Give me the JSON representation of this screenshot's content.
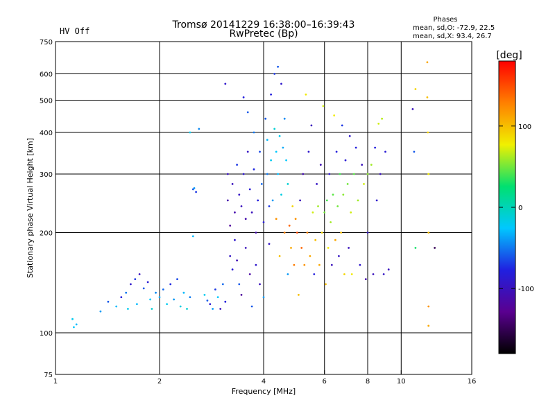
{
  "status": {
    "text": "HV Off",
    "color": "#cc0000"
  },
  "chart_data": {
    "type": "scatter",
    "title": "Tromsø 20141229 16:38:00–16:39:43",
    "subtitle": "RwPretec (Bp)",
    "xlabel": "Frequency [MHz]",
    "ylabel": "Stationary phase Virtual Height [km]",
    "x_scale": "log",
    "y_scale": "log",
    "xlim": [
      1,
      16
    ],
    "ylim": [
      75,
      750
    ],
    "x_ticks": [
      1,
      2,
      4,
      6,
      8,
      10,
      16
    ],
    "y_ticks": [
      75,
      100,
      200,
      300,
      400,
      500,
      600,
      750
    ],
    "grid": true,
    "legend": {
      "title": "Phases",
      "lines": [
        "mean, sd,O: -72.9, 22.5",
        "mean, sd,X:  93.4, 26.7"
      ],
      "placement": "top-right"
    },
    "colorbar": {
      "label": "[deg]",
      "min": -180,
      "max": 180,
      "ticks": [
        100,
        0,
        -100
      ],
      "colors": [
        "#000000",
        "#5a0090",
        "#2020e0",
        "#00c8ff",
        "#00e070",
        "#f0f000",
        "#ff8000",
        "#ff0000"
      ]
    },
    "points": [
      [
        1.12,
        110,
        -20
      ],
      [
        1.15,
        106,
        -30
      ],
      [
        1.13,
        104,
        -25
      ],
      [
        1.35,
        116,
        -40
      ],
      [
        1.42,
        124,
        -60
      ],
      [
        1.5,
        120,
        -30
      ],
      [
        1.55,
        128,
        -80
      ],
      [
        1.6,
        132,
        -50
      ],
      [
        1.62,
        118,
        -20
      ],
      [
        1.65,
        140,
        -90
      ],
      [
        1.7,
        145,
        -70
      ],
      [
        1.72,
        122,
        -30
      ],
      [
        1.75,
        150,
        -100
      ],
      [
        1.8,
        136,
        -60
      ],
      [
        1.85,
        142,
        -85
      ],
      [
        1.88,
        126,
        -25
      ],
      [
        1.9,
        118,
        -10
      ],
      [
        1.95,
        132,
        -45
      ],
      [
        2.0,
        128,
        -35
      ],
      [
        2.05,
        135,
        -55
      ],
      [
        2.1,
        122,
        -20
      ],
      [
        2.15,
        140,
        -75
      ],
      [
        2.2,
        126,
        -40
      ],
      [
        2.25,
        145,
        -65
      ],
      [
        2.3,
        120,
        -15
      ],
      [
        2.35,
        132,
        -30
      ],
      [
        2.4,
        118,
        -10
      ],
      [
        2.45,
        128,
        -50
      ],
      [
        2.5,
        270,
        -60
      ],
      [
        2.52,
        272,
        -40
      ],
      [
        2.55,
        265,
        -70
      ],
      [
        2.45,
        400,
        -20
      ],
      [
        2.5,
        195,
        -30
      ],
      [
        2.6,
        410,
        -45
      ],
      [
        2.7,
        130,
        -20
      ],
      [
        2.75,
        125,
        -60
      ],
      [
        2.8,
        122,
        -85
      ],
      [
        2.85,
        118,
        -40
      ],
      [
        2.9,
        135,
        -70
      ],
      [
        2.95,
        128,
        -25
      ],
      [
        3.0,
        118,
        -100
      ],
      [
        3.05,
        140,
        -55
      ],
      [
        3.1,
        124,
        -80
      ],
      [
        3.1,
        560,
        -90
      ],
      [
        3.15,
        300,
        -100
      ],
      [
        3.15,
        250,
        -110
      ],
      [
        3.2,
        210,
        -120
      ],
      [
        3.2,
        170,
        -95
      ],
      [
        3.25,
        155,
        -85
      ],
      [
        3.25,
        280,
        -100
      ],
      [
        3.3,
        230,
        -110
      ],
      [
        3.3,
        190,
        -90
      ],
      [
        3.35,
        320,
        -70
      ],
      [
        3.35,
        165,
        -105
      ],
      [
        3.4,
        260,
        -95
      ],
      [
        3.4,
        140,
        -60
      ],
      [
        3.45,
        240,
        -100
      ],
      [
        3.45,
        130,
        -120
      ],
      [
        3.5,
        510,
        -80
      ],
      [
        3.5,
        300,
        -90
      ],
      [
        3.55,
        220,
        -110
      ],
      [
        3.55,
        180,
        -100
      ],
      [
        3.6,
        460,
        -60
      ],
      [
        3.6,
        350,
        -95
      ],
      [
        3.65,
        270,
        -85
      ],
      [
        3.65,
        150,
        -115
      ],
      [
        3.7,
        230,
        -100
      ],
      [
        3.7,
        120,
        -60
      ],
      [
        3.75,
        400,
        -50
      ],
      [
        3.75,
        310,
        -75
      ],
      [
        3.8,
        200,
        -110
      ],
      [
        3.8,
        160,
        -90
      ],
      [
        3.85,
        250,
        -80
      ],
      [
        3.9,
        350,
        -65
      ],
      [
        3.9,
        140,
        -100
      ],
      [
        3.95,
        280,
        -55
      ],
      [
        4.0,
        215,
        -85
      ],
      [
        4.0,
        128,
        -40
      ],
      [
        4.05,
        440,
        -60
      ],
      [
        4.1,
        380,
        -30
      ],
      [
        4.1,
        300,
        -50
      ],
      [
        4.15,
        240,
        -70
      ],
      [
        4.15,
        185,
        -95
      ],
      [
        4.2,
        520,
        -80
      ],
      [
        4.2,
        330,
        -20
      ],
      [
        4.25,
        250,
        -40
      ],
      [
        4.3,
        600,
        -70
      ],
      [
        4.3,
        410,
        -10
      ],
      [
        4.35,
        350,
        -25
      ],
      [
        4.35,
        220,
        120
      ],
      [
        4.4,
        630,
        -60
      ],
      [
        4.4,
        300,
        -30
      ],
      [
        4.45,
        390,
        -20
      ],
      [
        4.45,
        170,
        100
      ],
      [
        4.5,
        560,
        -90
      ],
      [
        4.5,
        260,
        -15
      ],
      [
        4.55,
        360,
        -35
      ],
      [
        4.6,
        440,
        -45
      ],
      [
        4.6,
        200,
        130
      ],
      [
        4.65,
        330,
        -25
      ],
      [
        4.7,
        280,
        -10
      ],
      [
        4.7,
        150,
        -40
      ],
      [
        4.75,
        210,
        140
      ],
      [
        4.8,
        180,
        110
      ],
      [
        4.85,
        240,
        90
      ],
      [
        4.9,
        160,
        130
      ],
      [
        4.95,
        220,
        120
      ],
      [
        5.0,
        200,
        150
      ],
      [
        5.05,
        130,
        100
      ],
      [
        5.1,
        250,
        -100
      ],
      [
        5.15,
        180,
        140
      ],
      [
        5.2,
        300,
        -110
      ],
      [
        5.25,
        160,
        120
      ],
      [
        5.3,
        520,
        80
      ],
      [
        5.35,
        200,
        130
      ],
      [
        5.4,
        350,
        -90
      ],
      [
        5.45,
        170,
        110
      ],
      [
        5.5,
        420,
        -100
      ],
      [
        5.55,
        230,
        70
      ],
      [
        5.6,
        150,
        -80
      ],
      [
        5.65,
        190,
        100
      ],
      [
        5.7,
        280,
        -95
      ],
      [
        5.75,
        240,
        60
      ],
      [
        5.8,
        160,
        110
      ],
      [
        5.85,
        320,
        -105
      ],
      [
        5.9,
        200,
        90
      ],
      [
        5.95,
        480,
        70
      ],
      [
        6.0,
        230,
        50
      ],
      [
        6.05,
        140,
        100
      ],
      [
        6.1,
        250,
        40
      ],
      [
        6.15,
        180,
        80
      ],
      [
        6.2,
        300,
        -90
      ],
      [
        6.25,
        215,
        60
      ],
      [
        6.3,
        160,
        -100
      ],
      [
        6.35,
        260,
        45
      ],
      [
        6.4,
        450,
        80
      ],
      [
        6.45,
        190,
        110
      ],
      [
        6.5,
        350,
        -80
      ],
      [
        6.55,
        240,
        50
      ],
      [
        6.6,
        170,
        -95
      ],
      [
        6.65,
        300,
        40
      ],
      [
        6.7,
        200,
        100
      ],
      [
        6.75,
        420,
        -70
      ],
      [
        6.8,
        260,
        55
      ],
      [
        6.85,
        150,
        90
      ],
      [
        6.9,
        330,
        -85
      ],
      [
        7.0,
        280,
        50
      ],
      [
        7.05,
        180,
        -100
      ],
      [
        7.1,
        390,
        -90
      ],
      [
        7.15,
        230,
        70
      ],
      [
        7.2,
        150,
        80
      ],
      [
        7.3,
        300,
        45
      ],
      [
        7.4,
        360,
        -80
      ],
      [
        7.5,
        250,
        60
      ],
      [
        7.6,
        160,
        -90
      ],
      [
        7.7,
        320,
        -100
      ],
      [
        7.8,
        280,
        70
      ],
      [
        7.9,
        145,
        -110
      ],
      [
        8.0,
        300,
        55
      ],
      [
        8.0,
        200,
        -95
      ],
      [
        8.2,
        320,
        60
      ],
      [
        8.3,
        150,
        -100
      ],
      [
        8.4,
        360,
        -80
      ],
      [
        8.5,
        250,
        -90
      ],
      [
        8.6,
        425,
        70
      ],
      [
        8.7,
        300,
        -100
      ],
      [
        8.8,
        440,
        65
      ],
      [
        8.9,
        150,
        -95
      ],
      [
        9.0,
        350,
        -85
      ],
      [
        9.2,
        155,
        -100
      ],
      [
        10.8,
        470,
        -100
      ],
      [
        10.9,
        350,
        -60
      ],
      [
        11.0,
        540,
        90
      ],
      [
        11.0,
        180,
        30
      ],
      [
        11.9,
        650,
        110
      ],
      [
        11.9,
        510,
        100
      ],
      [
        11.95,
        400,
        90
      ],
      [
        12.0,
        300,
        80
      ],
      [
        12.0,
        200,
        100
      ],
      [
        12.0,
        120,
        120
      ],
      [
        12.0,
        105,
        110
      ],
      [
        12.5,
        180,
        -150
      ]
    ]
  }
}
